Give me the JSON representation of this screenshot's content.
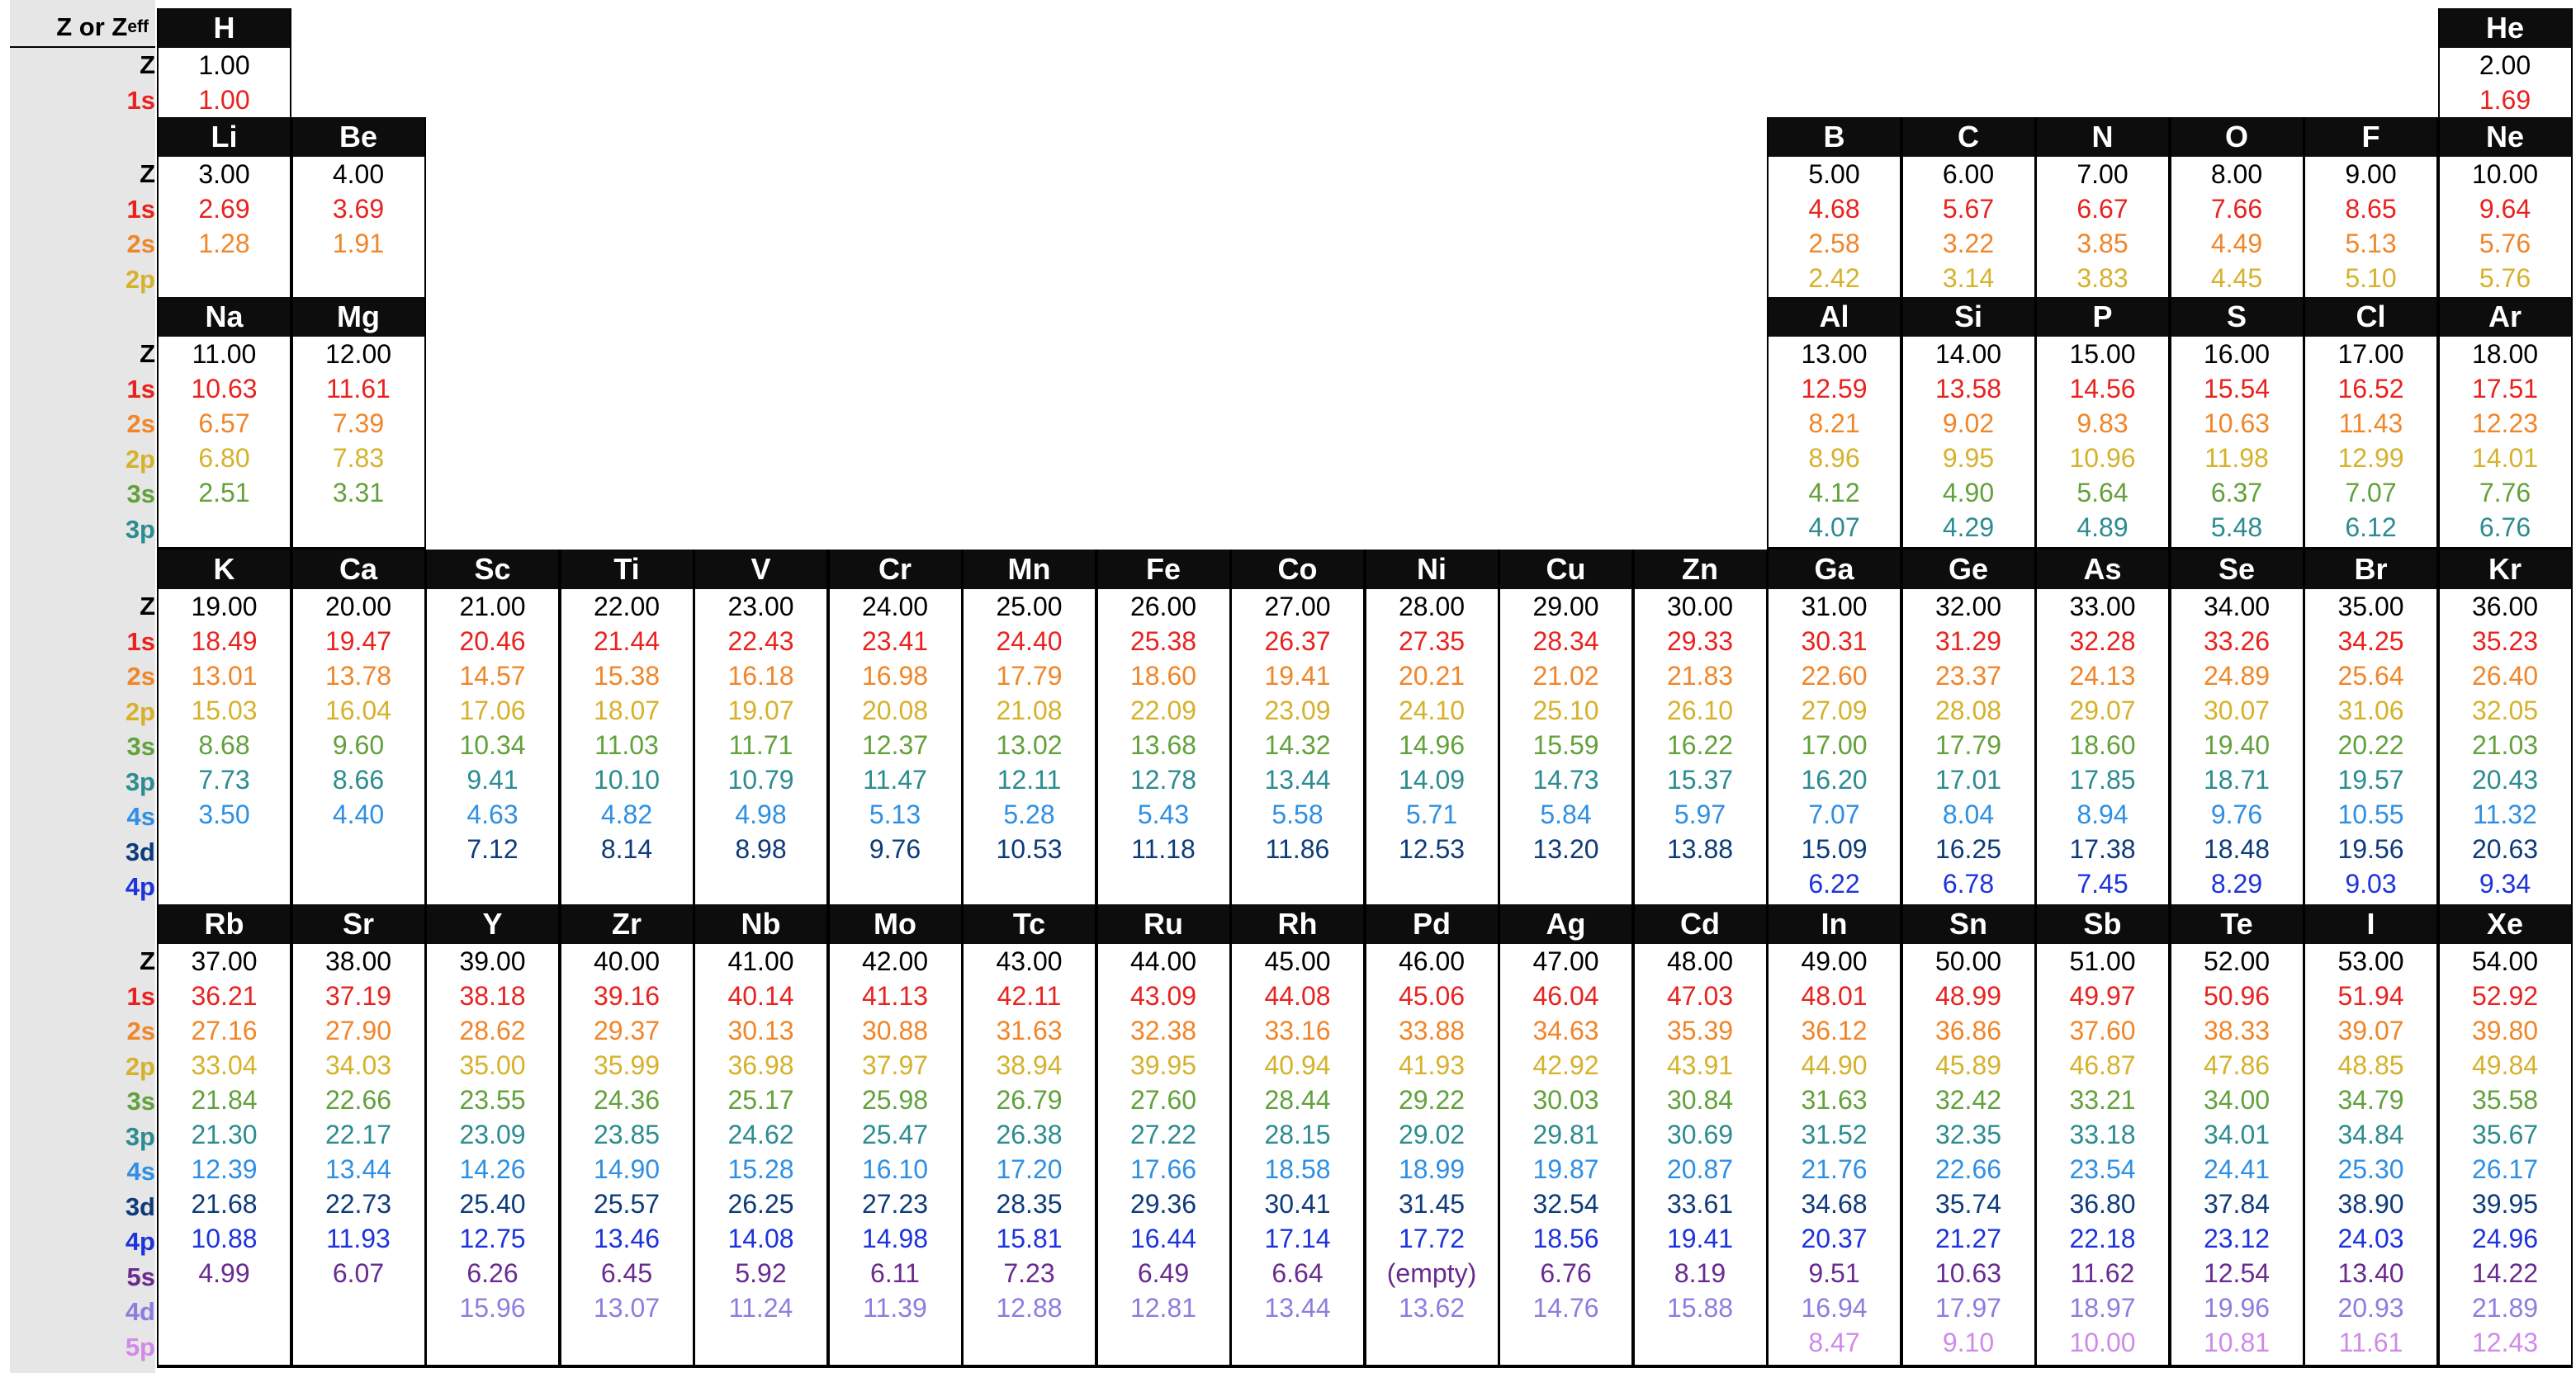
{
  "header_label": "Z or Z",
  "header_sub": "eff",
  "orbitals": [
    "Z",
    "1s",
    "2s",
    "2p",
    "3s",
    "3p",
    "4s",
    "3d",
    "4p",
    "5s",
    "4d",
    "5p"
  ],
  "orbital_colors": {
    "Z": "#000000",
    "1s": "#e8231f",
    "2s": "#f0862a",
    "2p": "#d6b22c",
    "3s": "#62a13b",
    "3p": "#2c8c8f",
    "4s": "#2f8fe3",
    "3d": "#0d3b7a",
    "4p": "#1d33dc",
    "5s": "#6a2a8f",
    "4d": "#8a7fe0",
    "5p": "#d08ae8"
  },
  "periods": [
    {
      "orbitals": [
        "Z",
        "1s"
      ]
    },
    {
      "orbitals": [
        "Z",
        "1s",
        "2s",
        "2p"
      ]
    },
    {
      "orbitals": [
        "Z",
        "1s",
        "2s",
        "2p",
        "3s",
        "3p"
      ]
    },
    {
      "orbitals": [
        "Z",
        "1s",
        "2s",
        "2p",
        "3s",
        "3p",
        "4s",
        "3d",
        "4p"
      ]
    },
    {
      "orbitals": [
        "Z",
        "1s",
        "2s",
        "2p",
        "3s",
        "3p",
        "4s",
        "3d",
        "4p",
        "5s",
        "4d",
        "5p"
      ]
    }
  ],
  "elements": [
    {
      "symbol": "H",
      "period": 1,
      "group": 1,
      "values": [
        "1.00",
        "1.00"
      ]
    },
    {
      "symbol": "He",
      "period": 1,
      "group": 18,
      "values": [
        "2.00",
        "1.69"
      ]
    },
    {
      "symbol": "Li",
      "period": 2,
      "group": 1,
      "values": [
        "3.00",
        "2.69",
        "1.28",
        ""
      ]
    },
    {
      "symbol": "Be",
      "period": 2,
      "group": 2,
      "values": [
        "4.00",
        "3.69",
        "1.91",
        ""
      ]
    },
    {
      "symbol": "B",
      "period": 2,
      "group": 13,
      "values": [
        "5.00",
        "4.68",
        "2.58",
        "2.42"
      ]
    },
    {
      "symbol": "C",
      "period": 2,
      "group": 14,
      "values": [
        "6.00",
        "5.67",
        "3.22",
        "3.14"
      ]
    },
    {
      "symbol": "N",
      "period": 2,
      "group": 15,
      "values": [
        "7.00",
        "6.67",
        "3.85",
        "3.83"
      ]
    },
    {
      "symbol": "O",
      "period": 2,
      "group": 16,
      "values": [
        "8.00",
        "7.66",
        "4.49",
        "4.45"
      ]
    },
    {
      "symbol": "F",
      "period": 2,
      "group": 17,
      "values": [
        "9.00",
        "8.65",
        "5.13",
        "5.10"
      ]
    },
    {
      "symbol": "Ne",
      "period": 2,
      "group": 18,
      "values": [
        "10.00",
        "9.64",
        "5.76",
        "5.76"
      ]
    },
    {
      "symbol": "Na",
      "period": 3,
      "group": 1,
      "values": [
        "11.00",
        "10.63",
        "6.57",
        "6.80",
        "2.51",
        ""
      ]
    },
    {
      "symbol": "Mg",
      "period": 3,
      "group": 2,
      "values": [
        "12.00",
        "11.61",
        "7.39",
        "7.83",
        "3.31",
        ""
      ]
    },
    {
      "symbol": "Al",
      "period": 3,
      "group": 13,
      "values": [
        "13.00",
        "12.59",
        "8.21",
        "8.96",
        "4.12",
        "4.07"
      ]
    },
    {
      "symbol": "Si",
      "period": 3,
      "group": 14,
      "values": [
        "14.00",
        "13.58",
        "9.02",
        "9.95",
        "4.90",
        "4.29"
      ]
    },
    {
      "symbol": "P",
      "period": 3,
      "group": 15,
      "values": [
        "15.00",
        "14.56",
        "9.83",
        "10.96",
        "5.64",
        "4.89"
      ]
    },
    {
      "symbol": "S",
      "period": 3,
      "group": 16,
      "values": [
        "16.00",
        "15.54",
        "10.63",
        "11.98",
        "6.37",
        "5.48"
      ]
    },
    {
      "symbol": "Cl",
      "period": 3,
      "group": 17,
      "values": [
        "17.00",
        "16.52",
        "11.43",
        "12.99",
        "7.07",
        "6.12"
      ]
    },
    {
      "symbol": "Ar",
      "period": 3,
      "group": 18,
      "values": [
        "18.00",
        "17.51",
        "12.23",
        "14.01",
        "7.76",
        "6.76"
      ]
    },
    {
      "symbol": "K",
      "period": 4,
      "group": 1,
      "values": [
        "19.00",
        "18.49",
        "13.01",
        "15.03",
        "8.68",
        "7.73",
        "3.50",
        "",
        ""
      ]
    },
    {
      "symbol": "Ca",
      "period": 4,
      "group": 2,
      "values": [
        "20.00",
        "19.47",
        "13.78",
        "16.04",
        "9.60",
        "8.66",
        "4.40",
        "",
        ""
      ]
    },
    {
      "symbol": "Sc",
      "period": 4,
      "group": 3,
      "values": [
        "21.00",
        "20.46",
        "14.57",
        "17.06",
        "10.34",
        "9.41",
        "4.63",
        "7.12",
        ""
      ]
    },
    {
      "symbol": "Ti",
      "period": 4,
      "group": 4,
      "values": [
        "22.00",
        "21.44",
        "15.38",
        "18.07",
        "11.03",
        "10.10",
        "4.82",
        "8.14",
        ""
      ]
    },
    {
      "symbol": "V",
      "period": 4,
      "group": 5,
      "values": [
        "23.00",
        "22.43",
        "16.18",
        "19.07",
        "11.71",
        "10.79",
        "4.98",
        "8.98",
        ""
      ]
    },
    {
      "symbol": "Cr",
      "period": 4,
      "group": 6,
      "values": [
        "24.00",
        "23.41",
        "16.98",
        "20.08",
        "12.37",
        "11.47",
        "5.13",
        "9.76",
        ""
      ]
    },
    {
      "symbol": "Mn",
      "period": 4,
      "group": 7,
      "values": [
        "25.00",
        "24.40",
        "17.79",
        "21.08",
        "13.02",
        "12.11",
        "5.28",
        "10.53",
        ""
      ]
    },
    {
      "symbol": "Fe",
      "period": 4,
      "group": 8,
      "values": [
        "26.00",
        "25.38",
        "18.60",
        "22.09",
        "13.68",
        "12.78",
        "5.43",
        "11.18",
        ""
      ]
    },
    {
      "symbol": "Co",
      "period": 4,
      "group": 9,
      "values": [
        "27.00",
        "26.37",
        "19.41",
        "23.09",
        "14.32",
        "13.44",
        "5.58",
        "11.86",
        ""
      ]
    },
    {
      "symbol": "Ni",
      "period": 4,
      "group": 10,
      "values": [
        "28.00",
        "27.35",
        "20.21",
        "24.10",
        "14.96",
        "14.09",
        "5.71",
        "12.53",
        ""
      ]
    },
    {
      "symbol": "Cu",
      "period": 4,
      "group": 11,
      "values": [
        "29.00",
        "28.34",
        "21.02",
        "25.10",
        "15.59",
        "14.73",
        "5.84",
        "13.20",
        ""
      ]
    },
    {
      "symbol": "Zn",
      "period": 4,
      "group": 12,
      "values": [
        "30.00",
        "29.33",
        "21.83",
        "26.10",
        "16.22",
        "15.37",
        "5.97",
        "13.88",
        ""
      ]
    },
    {
      "symbol": "Ga",
      "period": 4,
      "group": 13,
      "values": [
        "31.00",
        "30.31",
        "22.60",
        "27.09",
        "17.00",
        "16.20",
        "7.07",
        "15.09",
        "6.22"
      ]
    },
    {
      "symbol": "Ge",
      "period": 4,
      "group": 14,
      "values": [
        "32.00",
        "31.29",
        "23.37",
        "28.08",
        "17.79",
        "17.01",
        "8.04",
        "16.25",
        "6.78"
      ]
    },
    {
      "symbol": "As",
      "period": 4,
      "group": 15,
      "values": [
        "33.00",
        "32.28",
        "24.13",
        "29.07",
        "18.60",
        "17.85",
        "8.94",
        "17.38",
        "7.45"
      ]
    },
    {
      "symbol": "Se",
      "period": 4,
      "group": 16,
      "values": [
        "34.00",
        "33.26",
        "24.89",
        "30.07",
        "19.40",
        "18.71",
        "9.76",
        "18.48",
        "8.29"
      ]
    },
    {
      "symbol": "Br",
      "period": 4,
      "group": 17,
      "values": [
        "35.00",
        "34.25",
        "25.64",
        "31.06",
        "20.22",
        "19.57",
        "10.55",
        "19.56",
        "9.03"
      ]
    },
    {
      "symbol": "Kr",
      "period": 4,
      "group": 18,
      "values": [
        "36.00",
        "35.23",
        "26.40",
        "32.05",
        "21.03",
        "20.43",
        "11.32",
        "20.63",
        "9.34"
      ]
    },
    {
      "symbol": "Rb",
      "period": 5,
      "group": 1,
      "values": [
        "37.00",
        "36.21",
        "27.16",
        "33.04",
        "21.84",
        "21.30",
        "12.39",
        "21.68",
        "10.88",
        "4.99",
        "",
        ""
      ]
    },
    {
      "symbol": "Sr",
      "period": 5,
      "group": 2,
      "values": [
        "38.00",
        "37.19",
        "27.90",
        "34.03",
        "22.66",
        "22.17",
        "13.44",
        "22.73",
        "11.93",
        "6.07",
        "",
        ""
      ]
    },
    {
      "symbol": "Y",
      "period": 5,
      "group": 3,
      "values": [
        "39.00",
        "38.18",
        "28.62",
        "35.00",
        "23.55",
        "23.09",
        "14.26",
        "25.40",
        "12.75",
        "6.26",
        "15.96",
        ""
      ]
    },
    {
      "symbol": "Zr",
      "period": 5,
      "group": 4,
      "values": [
        "40.00",
        "39.16",
        "29.37",
        "35.99",
        "24.36",
        "23.85",
        "14.90",
        "25.57",
        "13.46",
        "6.45",
        "13.07",
        ""
      ]
    },
    {
      "symbol": "Nb",
      "period": 5,
      "group": 5,
      "values": [
        "41.00",
        "40.14",
        "30.13",
        "36.98",
        "25.17",
        "24.62",
        "15.28",
        "26.25",
        "14.08",
        "5.92",
        "11.24",
        ""
      ]
    },
    {
      "symbol": "Mo",
      "period": 5,
      "group": 6,
      "values": [
        "42.00",
        "41.13",
        "30.88",
        "37.97",
        "25.98",
        "25.47",
        "16.10",
        "27.23",
        "14.98",
        "6.11",
        "11.39",
        ""
      ]
    },
    {
      "symbol": "Tc",
      "period": 5,
      "group": 7,
      "values": [
        "43.00",
        "42.11",
        "31.63",
        "38.94",
        "26.79",
        "26.38",
        "17.20",
        "28.35",
        "15.81",
        "7.23",
        "12.88",
        ""
      ]
    },
    {
      "symbol": "Ru",
      "period": 5,
      "group": 8,
      "values": [
        "44.00",
        "43.09",
        "32.38",
        "39.95",
        "27.60",
        "27.22",
        "17.66",
        "29.36",
        "16.44",
        "6.49",
        "12.81",
        ""
      ]
    },
    {
      "symbol": "Rh",
      "period": 5,
      "group": 9,
      "values": [
        "45.00",
        "44.08",
        "33.16",
        "40.94",
        "28.44",
        "28.15",
        "18.58",
        "30.41",
        "17.14",
        "6.64",
        "13.44",
        ""
      ]
    },
    {
      "symbol": "Pd",
      "period": 5,
      "group": 10,
      "values": [
        "46.00",
        "45.06",
        "33.88",
        "41.93",
        "29.22",
        "29.02",
        "18.99",
        "31.45",
        "17.72",
        "(empty)",
        "13.62",
        ""
      ]
    },
    {
      "symbol": "Ag",
      "period": 5,
      "group": 11,
      "values": [
        "47.00",
        "46.04",
        "34.63",
        "42.92",
        "30.03",
        "29.81",
        "19.87",
        "32.54",
        "18.56",
        "6.76",
        "14.76",
        ""
      ]
    },
    {
      "symbol": "Cd",
      "period": 5,
      "group": 12,
      "values": [
        "48.00",
        "47.03",
        "35.39",
        "43.91",
        "30.84",
        "30.69",
        "20.87",
        "33.61",
        "19.41",
        "8.19",
        "15.88",
        ""
      ]
    },
    {
      "symbol": "In",
      "period": 5,
      "group": 13,
      "values": [
        "49.00",
        "48.01",
        "36.12",
        "44.90",
        "31.63",
        "31.52",
        "21.76",
        "34.68",
        "20.37",
        "9.51",
        "16.94",
        "8.47"
      ]
    },
    {
      "symbol": "Sn",
      "period": 5,
      "group": 14,
      "values": [
        "50.00",
        "48.99",
        "36.86",
        "45.89",
        "32.42",
        "32.35",
        "22.66",
        "35.74",
        "21.27",
        "10.63",
        "17.97",
        "9.10"
      ]
    },
    {
      "symbol": "Sb",
      "period": 5,
      "group": 15,
      "values": [
        "51.00",
        "49.97",
        "37.60",
        "46.87",
        "33.21",
        "33.18",
        "23.54",
        "36.80",
        "22.18",
        "11.62",
        "18.97",
        "10.00"
      ]
    },
    {
      "symbol": "Te",
      "period": 5,
      "group": 16,
      "values": [
        "52.00",
        "50.96",
        "38.33",
        "47.86",
        "34.00",
        "34.01",
        "24.41",
        "37.84",
        "23.12",
        "12.54",
        "19.96",
        "10.81"
      ]
    },
    {
      "symbol": "I",
      "period": 5,
      "group": 17,
      "values": [
        "53.00",
        "51.94",
        "39.07",
        "48.85",
        "34.79",
        "34.84",
        "25.30",
        "38.90",
        "24.03",
        "13.40",
        "20.93",
        "11.61"
      ]
    },
    {
      "symbol": "Xe",
      "period": 5,
      "group": 18,
      "values": [
        "54.00",
        "52.92",
        "39.80",
        "49.84",
        "35.58",
        "35.67",
        "26.17",
        "39.95",
        "24.96",
        "14.22",
        "21.89",
        "12.43"
      ]
    }
  ]
}
